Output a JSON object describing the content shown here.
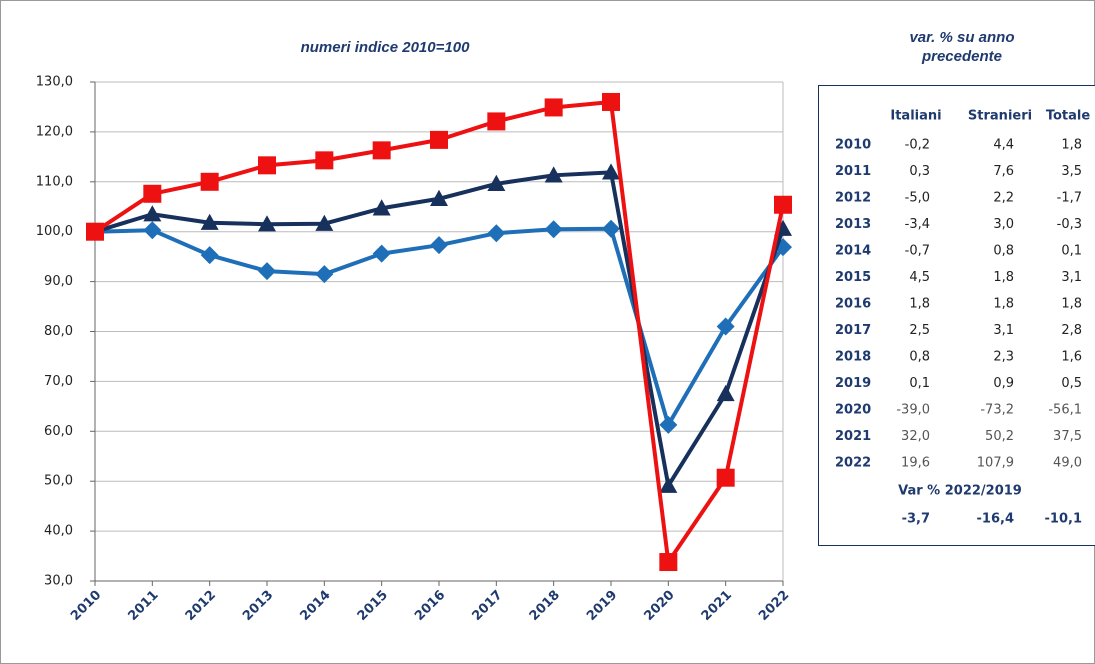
{
  "chart_data": {
    "type": "line",
    "title": "numeri indice 2010=100",
    "categories": [
      "2010",
      "2011",
      "2012",
      "2013",
      "2014",
      "2015",
      "2016",
      "2017",
      "2018",
      "2019",
      "2020",
      "2021",
      "2022"
    ],
    "series": [
      {
        "color": "#1f6fb8",
        "marker": "diamond",
        "values": [
          100,
          100.3,
          95.3,
          92.1,
          91.5,
          95.6,
          97.3,
          99.7,
          100.5,
          100.6,
          61.3,
          81.0,
          96.9
        ]
      },
      {
        "color": "#17305c",
        "marker": "triangle",
        "values": [
          100,
          103.5,
          101.8,
          101.5,
          101.6,
          104.7,
          106.6,
          109.6,
          111.3,
          111.9,
          49.1,
          67.5,
          100.6
        ]
      },
      {
        "color": "#ee1111",
        "marker": "square",
        "values": [
          100,
          107.6,
          110.0,
          113.3,
          114.3,
          116.3,
          118.4,
          122.1,
          124.9,
          126.0,
          33.8,
          50.7,
          105.4
        ]
      }
    ],
    "ylim": [
      30,
      130
    ],
    "yticks": [
      {
        "value": 30,
        "label": "30,0"
      },
      {
        "value": 40,
        "label": "40,0"
      },
      {
        "value": 50,
        "label": "50,0"
      },
      {
        "value": 60,
        "label": "60,0"
      },
      {
        "value": 70,
        "label": "70,0"
      },
      {
        "value": 80,
        "label": "80,0"
      },
      {
        "value": 90,
        "label": "90,0"
      },
      {
        "value": 100,
        "label": "100,0"
      },
      {
        "value": 110,
        "label": "110,0"
      },
      {
        "value": 120,
        "label": "120,0"
      },
      {
        "value": 130,
        "label": "130,0"
      }
    ],
    "grid": true
  },
  "table": {
    "title_lines": [
      "var. % su anno",
      "precedente"
    ],
    "columns": [
      "Italiani",
      "Stranieri",
      "Totale"
    ],
    "rows": [
      {
        "year": "2010",
        "values": [
          "-0,2",
          "4,4",
          "1,8"
        ]
      },
      {
        "year": "2011",
        "values": [
          "0,3",
          "7,6",
          "3,5"
        ]
      },
      {
        "year": "2012",
        "values": [
          "-5,0",
          "2,2",
          "-1,7"
        ]
      },
      {
        "year": "2013",
        "values": [
          "-3,4",
          "3,0",
          "-0,3"
        ]
      },
      {
        "year": "2014",
        "values": [
          "-0,7",
          "0,8",
          "0,1"
        ]
      },
      {
        "year": "2015",
        "values": [
          "4,5",
          "1,8",
          "3,1"
        ]
      },
      {
        "year": "2016",
        "values": [
          "1,8",
          "1,8",
          "1,8"
        ]
      },
      {
        "year": "2017",
        "values": [
          "2,5",
          "3,1",
          "2,8"
        ]
      },
      {
        "year": "2018",
        "values": [
          "0,8",
          "2,3",
          "1,6"
        ]
      },
      {
        "year": "2019",
        "values": [
          "0,1",
          "0,9",
          "0,5"
        ]
      },
      {
        "year": "2020",
        "values": [
          "-39,0",
          "-73,2",
          "-56,1"
        ]
      },
      {
        "year": "2021",
        "values": [
          "32,0",
          "50,2",
          "37,5"
        ]
      },
      {
        "year": "2022",
        "values": [
          "19,6",
          "107,9",
          "49,0"
        ]
      }
    ],
    "footer_title": "Var % 2022/2019",
    "footer_values": [
      "-3,7",
      "-16,4",
      "-10,1"
    ]
  }
}
